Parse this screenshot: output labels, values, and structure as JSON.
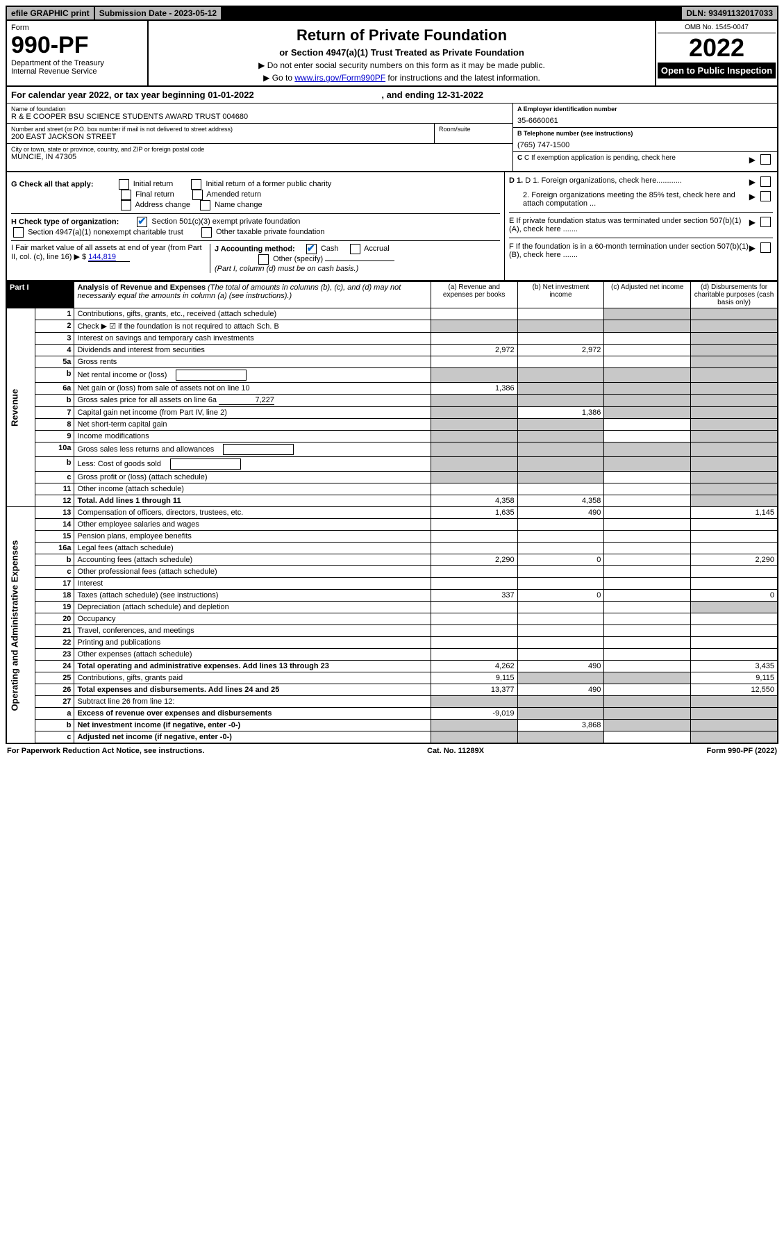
{
  "top_bar": {
    "efile": "efile GRAPHIC print",
    "submission_label": "Submission Date - 2023-05-12",
    "dln": "DLN: 93491132017033"
  },
  "header": {
    "form_word": "Form",
    "form_number": "990-PF",
    "dept": "Department of the Treasury",
    "irs": "Internal Revenue Service",
    "title": "Return of Private Foundation",
    "subtitle": "or Section 4947(a)(1) Trust Treated as Private Foundation",
    "instr1": "▶ Do not enter social security numbers on this form as it may be made public.",
    "instr2_prefix": "▶ Go to ",
    "instr2_link": "www.irs.gov/Form990PF",
    "instr2_suffix": " for instructions and the latest information.",
    "omb": "OMB No. 1545-0047",
    "year": "2022",
    "open_public": "Open to Public Inspection"
  },
  "cal_year": {
    "prefix": "For calendar year 2022, or tax year beginning ",
    "begin": "01-01-2022",
    "mid": " , and ending ",
    "end": "12-31-2022"
  },
  "info": {
    "name_lbl": "Name of foundation",
    "name_val": "R & E COOPER BSU SCIENCE STUDENTS AWARD TRUST 004680",
    "ein_lbl": "A Employer identification number",
    "ein_val": "35-6660061",
    "addr_lbl": "Number and street (or P.O. box number if mail is not delivered to street address)",
    "addr_val": "200 EAST JACKSON STREET",
    "room_lbl": "Room/suite",
    "phone_lbl": "B Telephone number (see instructions)",
    "phone_val": "(765) 747-1500",
    "city_lbl": "City or town, state or province, country, and ZIP or foreign postal code",
    "city_val": "MUNCIE, IN  47305",
    "c_lbl": "C If exemption application is pending, check here"
  },
  "checks": {
    "g_label": "G Check all that apply:",
    "g_opts": [
      "Initial return",
      "Initial return of a former public charity",
      "Final return",
      "Amended return",
      "Address change",
      "Name change"
    ],
    "h_label": "H Check type of organization:",
    "h_opt1": "Section 501(c)(3) exempt private foundation",
    "h_opt2": "Section 4947(a)(1) nonexempt charitable trust",
    "h_opt3": "Other taxable private foundation",
    "i_label": "I Fair market value of all assets at end of year (from Part II, col. (c), line 16) ▶ $",
    "i_val": "144,819",
    "j_label": "J Accounting method:",
    "j_cash": "Cash",
    "j_accrual": "Accrual",
    "j_other": "Other (specify)",
    "j_note": "(Part I, column (d) must be on cash basis.)",
    "d1": "D 1. Foreign organizations, check here............",
    "d2": "2. Foreign organizations meeting the 85% test, check here and attach computation ...",
    "e": "E  If private foundation status was terminated under section 507(b)(1)(A), check here .......",
    "f": "F  If the foundation is in a 60-month termination under section 507(b)(1)(B), check here .......",
    "arrow": "▶"
  },
  "part1": {
    "label": "Part I",
    "title": "Analysis of Revenue and Expenses",
    "note": " (The total of amounts in columns (b), (c), and (d) may not necessarily equal the amounts in column (a) (see instructions).)",
    "col_a": "(a)  Revenue and expenses per books",
    "col_b": "(b)  Net investment income",
    "col_c": "(c)  Adjusted net income",
    "col_d": "(d)  Disbursements for charitable purposes (cash basis only)"
  },
  "side_labels": {
    "revenue": "Revenue",
    "expenses": "Operating and Administrative Expenses"
  },
  "rows": [
    {
      "n": "1",
      "d": "Contributions, gifts, grants, etc., received (attach schedule)",
      "a": "",
      "b": "",
      "c": "g",
      "dd": "g"
    },
    {
      "n": "2",
      "d": "Check ▶ ☑ if the foundation is not required to attach Sch. B",
      "a": "g",
      "b": "g",
      "c": "g",
      "dd": "g",
      "bold_not": true
    },
    {
      "n": "3",
      "d": "Interest on savings and temporary cash investments",
      "a": "",
      "b": "",
      "c": "",
      "dd": "g"
    },
    {
      "n": "4",
      "d": "Dividends and interest from securities",
      "a": "2,972",
      "b": "2,972",
      "c": "",
      "dd": "g"
    },
    {
      "n": "5a",
      "d": "Gross rents",
      "a": "",
      "b": "",
      "c": "",
      "dd": "g"
    },
    {
      "n": "b",
      "d": "Net rental income or (loss)",
      "a": "g",
      "b": "g",
      "c": "g",
      "dd": "g",
      "inline_box": true
    },
    {
      "n": "6a",
      "d": "Net gain or (loss) from sale of assets not on line 10",
      "a": "1,386",
      "b": "g",
      "c": "g",
      "dd": "g"
    },
    {
      "n": "b",
      "d": "Gross sales price for all assets on line 6a",
      "a": "g",
      "b": "g",
      "c": "g",
      "dd": "g",
      "inline_val": "7,227"
    },
    {
      "n": "7",
      "d": "Capital gain net income (from Part IV, line 2)",
      "a": "g",
      "b": "1,386",
      "c": "g",
      "dd": "g"
    },
    {
      "n": "8",
      "d": "Net short-term capital gain",
      "a": "g",
      "b": "g",
      "c": "",
      "dd": "g"
    },
    {
      "n": "9",
      "d": "Income modifications",
      "a": "g",
      "b": "g",
      "c": "",
      "dd": "g"
    },
    {
      "n": "10a",
      "d": "Gross sales less returns and allowances",
      "a": "g",
      "b": "g",
      "c": "g",
      "dd": "g",
      "inline_box": true
    },
    {
      "n": "b",
      "d": "Less: Cost of goods sold",
      "a": "g",
      "b": "g",
      "c": "g",
      "dd": "g",
      "inline_box": true
    },
    {
      "n": "c",
      "d": "Gross profit or (loss) (attach schedule)",
      "a": "g",
      "b": "g",
      "c": "",
      "dd": "g"
    },
    {
      "n": "11",
      "d": "Other income (attach schedule)",
      "a": "",
      "b": "",
      "c": "",
      "dd": "g"
    },
    {
      "n": "12",
      "d": "Total. Add lines 1 through 11",
      "a": "4,358",
      "b": "4,358",
      "c": "",
      "dd": "g",
      "bold": true
    },
    {
      "n": "13",
      "d": "Compensation of officers, directors, trustees, etc.",
      "a": "1,635",
      "b": "490",
      "c": "",
      "dd": "1,145"
    },
    {
      "n": "14",
      "d": "Other employee salaries and wages",
      "a": "",
      "b": "",
      "c": "",
      "dd": ""
    },
    {
      "n": "15",
      "d": "Pension plans, employee benefits",
      "a": "",
      "b": "",
      "c": "",
      "dd": ""
    },
    {
      "n": "16a",
      "d": "Legal fees (attach schedule)",
      "a": "",
      "b": "",
      "c": "",
      "dd": ""
    },
    {
      "n": "b",
      "d": "Accounting fees (attach schedule)",
      "a": "2,290",
      "b": "0",
      "c": "",
      "dd": "2,290"
    },
    {
      "n": "c",
      "d": "Other professional fees (attach schedule)",
      "a": "",
      "b": "",
      "c": "",
      "dd": ""
    },
    {
      "n": "17",
      "d": "Interest",
      "a": "",
      "b": "",
      "c": "",
      "dd": ""
    },
    {
      "n": "18",
      "d": "Taxes (attach schedule) (see instructions)",
      "a": "337",
      "b": "0",
      "c": "",
      "dd": "0"
    },
    {
      "n": "19",
      "d": "Depreciation (attach schedule) and depletion",
      "a": "",
      "b": "",
      "c": "",
      "dd": "g"
    },
    {
      "n": "20",
      "d": "Occupancy",
      "a": "",
      "b": "",
      "c": "",
      "dd": ""
    },
    {
      "n": "21",
      "d": "Travel, conferences, and meetings",
      "a": "",
      "b": "",
      "c": "",
      "dd": ""
    },
    {
      "n": "22",
      "d": "Printing and publications",
      "a": "",
      "b": "",
      "c": "",
      "dd": ""
    },
    {
      "n": "23",
      "d": "Other expenses (attach schedule)",
      "a": "",
      "b": "",
      "c": "",
      "dd": ""
    },
    {
      "n": "24",
      "d": "Total operating and administrative expenses. Add lines 13 through 23",
      "a": "4,262",
      "b": "490",
      "c": "",
      "dd": "3,435",
      "bold": true
    },
    {
      "n": "25",
      "d": "Contributions, gifts, grants paid",
      "a": "9,115",
      "b": "g",
      "c": "g",
      "dd": "9,115"
    },
    {
      "n": "26",
      "d": "Total expenses and disbursements. Add lines 24 and 25",
      "a": "13,377",
      "b": "490",
      "c": "",
      "dd": "12,550",
      "bold": true
    },
    {
      "n": "27",
      "d": "Subtract line 26 from line 12:",
      "a": "g",
      "b": "g",
      "c": "g",
      "dd": "g"
    },
    {
      "n": "a",
      "d": "Excess of revenue over expenses and disbursements",
      "a": "-9,019",
      "b": "g",
      "c": "g",
      "dd": "g",
      "bold": true
    },
    {
      "n": "b",
      "d": "Net investment income (if negative, enter -0-)",
      "a": "g",
      "b": "3,868",
      "c": "g",
      "dd": "g",
      "bold": true
    },
    {
      "n": "c",
      "d": "Adjusted net income (if negative, enter -0-)",
      "a": "g",
      "b": "g",
      "c": "",
      "dd": "g",
      "bold": true
    }
  ],
  "footer": {
    "left": "For Paperwork Reduction Act Notice, see instructions.",
    "mid": "Cat. No. 11289X",
    "right": "Form 990-PF (2022)"
  }
}
